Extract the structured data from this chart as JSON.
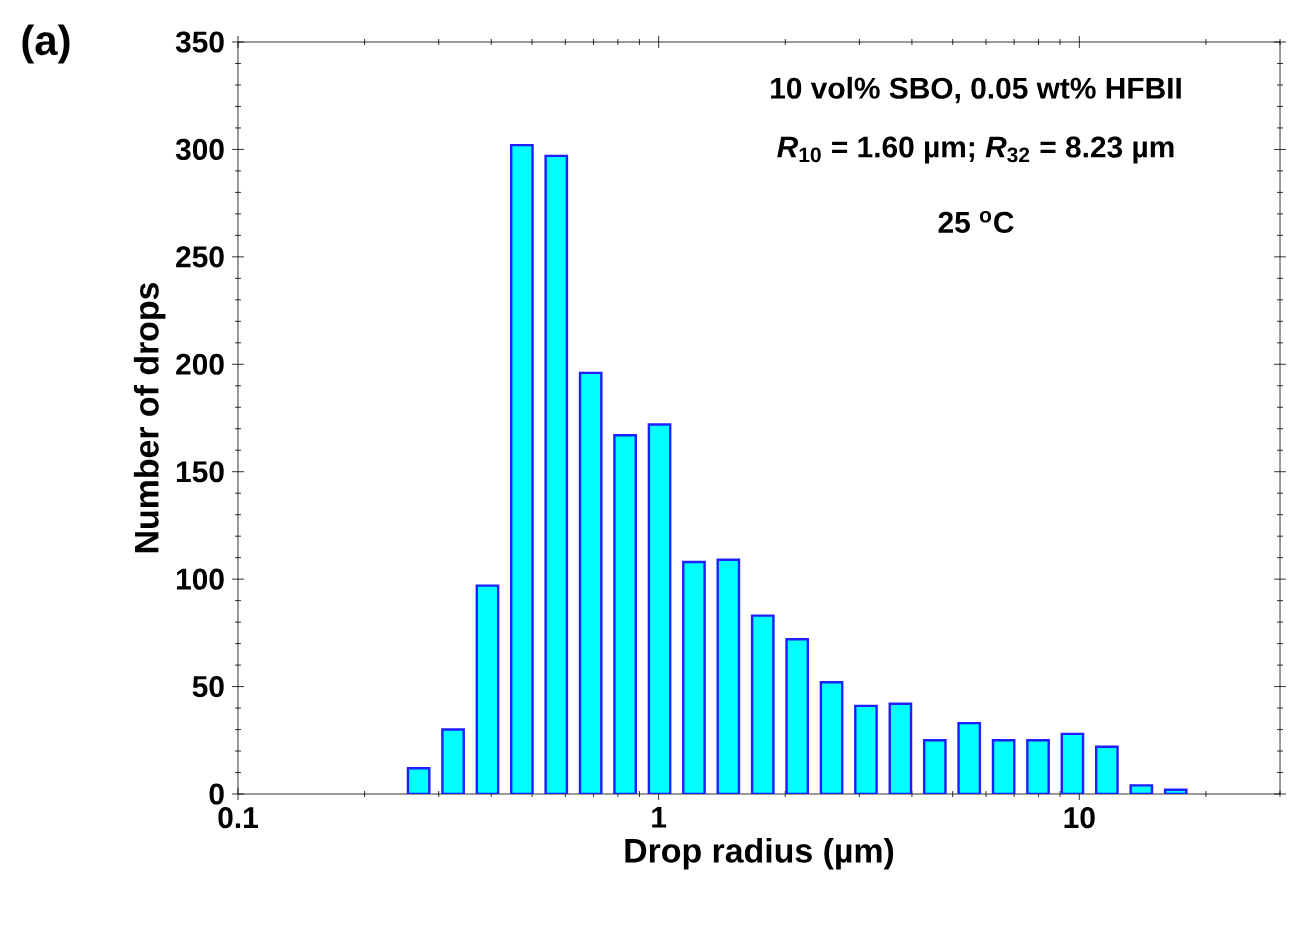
{
  "chart_data": {
    "type": "histogram",
    "annotations": [
      "(a)",
      "10 vol% SBO, 0.05 wt% HFBII",
      "*R*$_{10}$ = 1.60 µm; *R*$_{32}$ = 8.23 µm",
      "25 $^{o}$C"
    ],
    "xlabel": "Drop radius (µm)",
    "ylabel": "Number of drops",
    "bins": [
      0.2446,
      0.2954,
      0.3566,
      0.4305,
      0.5197,
      0.6274,
      0.7575,
      0.9145,
      1.104,
      1.333,
      1.609,
      1.943,
      2.345,
      2.831,
      3.418,
      4.127,
      4.982,
      6.015,
      7.261,
      8.767,
      10.58,
      12.78,
      15.43,
      18.62
    ],
    "values": [
      12,
      30,
      97,
      302,
      297,
      196,
      167,
      172,
      108,
      109,
      83,
      72,
      52,
      41,
      42,
      25,
      33,
      25,
      25,
      28,
      22,
      4,
      2
    ],
    "color": "#00ffff",
    "log": "x",
    "xlim": [
      0.1,
      30
    ],
    "xticks": [
      0.1,
      1,
      10
    ],
    "ylim": [
      0,
      350
    ],
    "yticks": [
      0,
      50,
      100,
      150,
      200,
      250,
      300,
      350
    ]
  }
}
